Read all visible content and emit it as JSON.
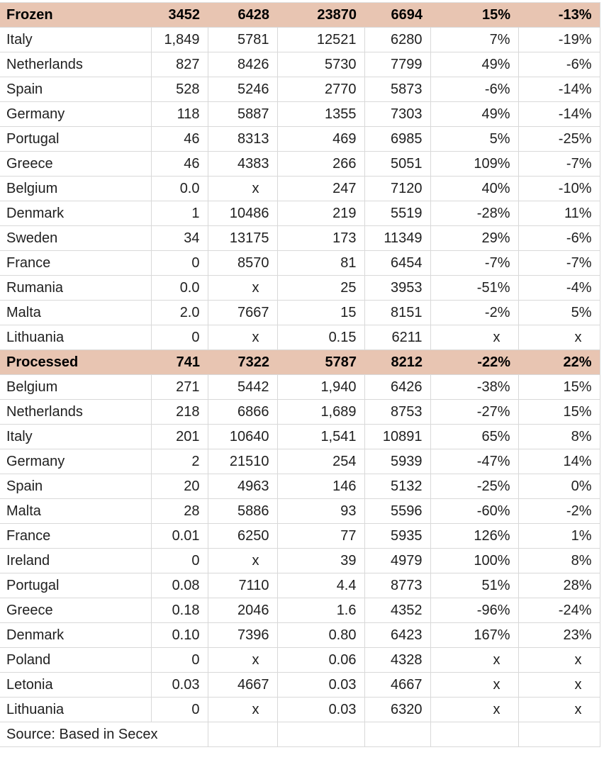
{
  "colors": {
    "section_header_bg": "#e8c5b2",
    "grid_line": "#d9d9d9",
    "body_text": "#1f1f1f",
    "section_text": "#000000",
    "row_bg": "#ffffff"
  },
  "table": {
    "source_note": "Source: Based in Secex",
    "sections": [
      {
        "label": "Frozen",
        "totals": [
          "3452",
          "6428",
          "23870",
          "6694",
          "15%",
          "-13%"
        ],
        "rows": [
          {
            "country": "Italy",
            "values": [
              "1,849",
              "5781",
              "12521",
              "6280",
              "7%",
              "-19%"
            ]
          },
          {
            "country": "Netherlands",
            "values": [
              "827",
              "8426",
              "5730",
              "7799",
              "49%",
              "-6%"
            ]
          },
          {
            "country": "Spain",
            "values": [
              "528",
              "5246",
              "2770",
              "5873",
              "-6%",
              "-14%"
            ]
          },
          {
            "country": "Germany",
            "values": [
              "118",
              "5887",
              "1355",
              "7303",
              "49%",
              "-14%"
            ]
          },
          {
            "country": "Portugal",
            "values": [
              "46",
              "8313",
              "469",
              "6985",
              "5%",
              "-25%"
            ]
          },
          {
            "country": "Greece",
            "values": [
              "46",
              "4383",
              "266",
              "5051",
              "109%",
              "-7%"
            ]
          },
          {
            "country": "Belgium",
            "values": [
              "0.0",
              "x",
              "247",
              "7120",
              "40%",
              "-10%"
            ]
          },
          {
            "country": "Denmark",
            "values": [
              "1",
              "10486",
              "219",
              "5519",
              "-28%",
              "11%"
            ]
          },
          {
            "country": "Sweden",
            "values": [
              "34",
              "13175",
              "173",
              "11349",
              "29%",
              "-6%"
            ]
          },
          {
            "country": "France",
            "values": [
              "0",
              "8570",
              "81",
              "6454",
              "-7%",
              "-7%"
            ]
          },
          {
            "country": "Rumania",
            "values": [
              "0.0",
              "x",
              "25",
              "3953",
              "-51%",
              "-4%"
            ]
          },
          {
            "country": "Malta",
            "values": [
              "2.0",
              "7667",
              "15",
              "8151",
              "-2%",
              "5%"
            ]
          },
          {
            "country": "Lithuania",
            "values": [
              "0",
              "x",
              "0.15",
              "6211",
              "x",
              "x"
            ]
          }
        ]
      },
      {
        "label": "Processed",
        "totals": [
          "741",
          "7322",
          "5787",
          "8212",
          "-22%",
          "22%"
        ],
        "rows": [
          {
            "country": "Belgium",
            "values": [
              "271",
              "5442",
              "1,940",
              "6426",
              "-38%",
              "15%"
            ]
          },
          {
            "country": "Netherlands",
            "values": [
              "218",
              "6866",
              "1,689",
              "8753",
              "-27%",
              "15%"
            ]
          },
          {
            "country": "Italy",
            "values": [
              "201",
              "10640",
              "1,541",
              "10891",
              "65%",
              "8%"
            ]
          },
          {
            "country": "Germany",
            "values": [
              "2",
              "21510",
              "254",
              "5939",
              "-47%",
              "14%"
            ]
          },
          {
            "country": "Spain",
            "values": [
              "20",
              "4963",
              "146",
              "5132",
              "-25%",
              "0%"
            ]
          },
          {
            "country": "Malta",
            "values": [
              "28",
              "5886",
              "93",
              "5596",
              "-60%",
              "-2%"
            ]
          },
          {
            "country": "France",
            "values": [
              "0.01",
              "6250",
              "77",
              "5935",
              "126%",
              "1%"
            ]
          },
          {
            "country": "Ireland",
            "values": [
              "0",
              "x",
              "39",
              "4979",
              "100%",
              "8%"
            ]
          },
          {
            "country": "Portugal",
            "values": [
              "0.08",
              "7110",
              "4.4",
              "8773",
              "51%",
              "28%"
            ]
          },
          {
            "country": "Greece",
            "values": [
              "0.18",
              "2046",
              "1.6",
              "4352",
              "-96%",
              "-24%"
            ]
          },
          {
            "country": "Denmark",
            "values": [
              "0.10",
              "7396",
              "0.80",
              "6423",
              "167%",
              "23%"
            ]
          },
          {
            "country": "Poland",
            "values": [
              "0",
              "x",
              "0.06",
              "4328",
              "x",
              "x"
            ]
          },
          {
            "country": "Letonia",
            "values": [
              "0.03",
              "4667",
              "0.03",
              "4667",
              "x",
              "x"
            ]
          },
          {
            "country": "Lithuania",
            "values": [
              "0",
              "x",
              "0.03",
              "6320",
              "x",
              "x"
            ]
          }
        ]
      }
    ]
  }
}
